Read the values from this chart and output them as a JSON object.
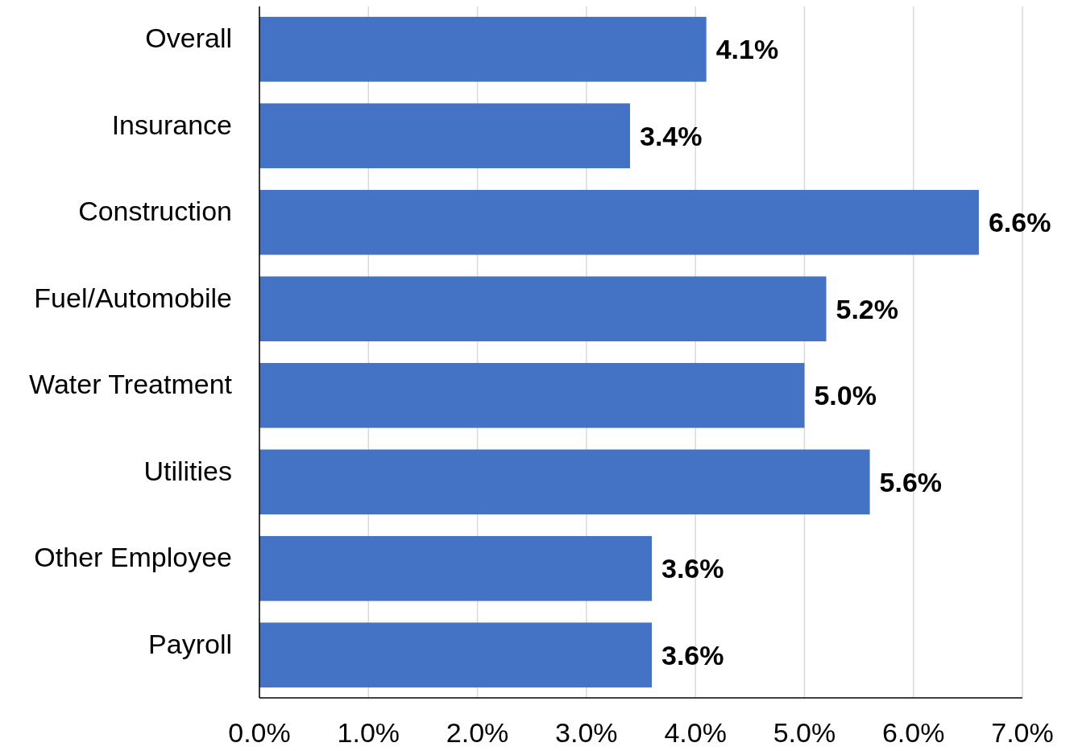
{
  "chart_data": {
    "type": "bar",
    "orientation": "horizontal",
    "categories": [
      "Overall",
      "Insurance",
      "Construction",
      "Fuel/Automobile",
      "Water Treatment",
      "Utilities",
      "Other Employee",
      "Payroll"
    ],
    "values": [
      4.1,
      3.4,
      6.6,
      5.2,
      5.0,
      5.6,
      3.6,
      3.6
    ],
    "value_labels": [
      "4.1%",
      "3.4%",
      "6.6%",
      "5.2%",
      "5.0%",
      "5.6%",
      "3.6%",
      "3.6%"
    ],
    "color": "#4472c4",
    "xlim": [
      0,
      7
    ],
    "xticks": [
      {
        "value": 0,
        "label": "0.0%"
      },
      {
        "value": 1,
        "label": "1.0%"
      },
      {
        "value": 2,
        "label": "2.0%"
      },
      {
        "value": 3,
        "label": "3.0%"
      },
      {
        "value": 4,
        "label": "4.0%"
      },
      {
        "value": 5,
        "label": "5.0%"
      },
      {
        "value": 6,
        "label": "6.0%"
      },
      {
        "value": 7,
        "label": "7.0%"
      }
    ],
    "grid": "x"
  }
}
